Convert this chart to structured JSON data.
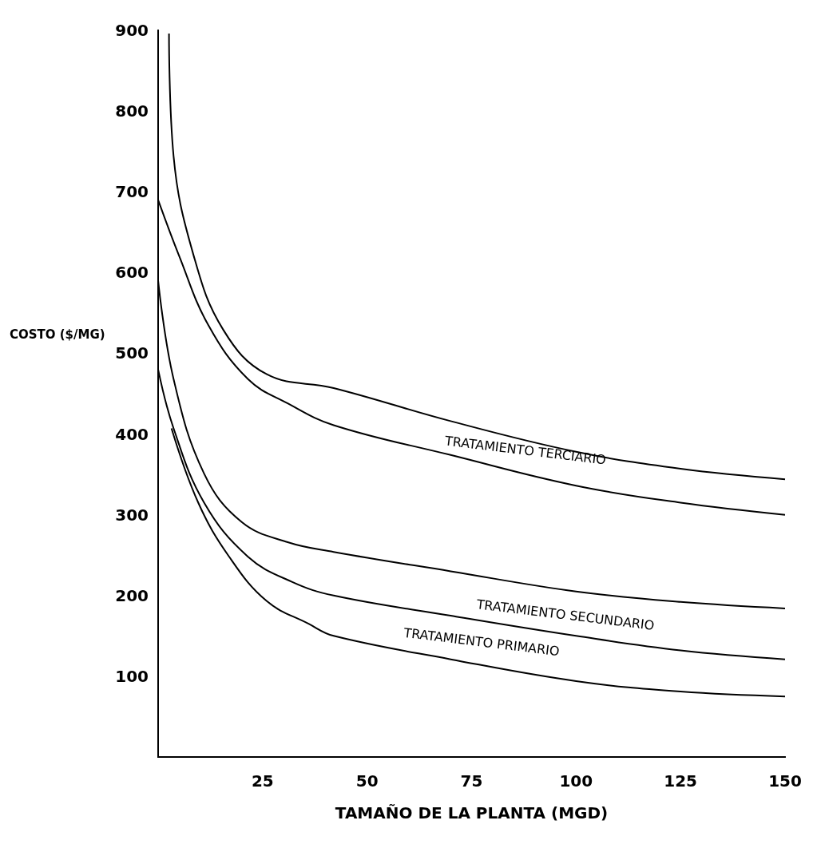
{
  "chart_data": {
    "type": "line",
    "xlabel": "TAMAÑO DE LA PLANTA (MGD)",
    "ylabel": "COSTO ($/MG)",
    "xlim": [
      0,
      150
    ],
    "xticks": [
      25,
      50,
      75,
      100,
      125,
      150
    ],
    "ylim": [
      0,
      900
    ],
    "yticks": [
      100,
      200,
      300,
      400,
      500,
      600,
      700,
      800,
      900
    ],
    "marker": "none",
    "line_style": "solid",
    "series": [
      {
        "color": "#000000",
        "x": [
          2.6,
          3.7,
          8.5,
          15.6,
          26,
          42,
          70,
          100,
          125,
          150
        ],
        "values": [
          896,
          744,
          621,
          529,
          474,
          457,
          416,
          378,
          357,
          344
        ]
      },
      {
        "color": "#000000",
        "x": [
          0,
          5,
          12,
          21.5,
          31,
          42,
          70,
          100,
          125,
          150
        ],
        "values": [
          690,
          621,
          535,
          468,
          438,
          411,
          374,
          336,
          315,
          300
        ]
      },
      {
        "color": "#000000",
        "x": [
          0,
          3.7,
          11,
          20,
          31,
          42,
          70,
          100,
          125,
          150
        ],
        "values": [
          590,
          468,
          351,
          291,
          266,
          254,
          230,
          205,
          192,
          184
        ]
      },
      {
        "color": "#000000",
        "x": [
          0,
          3.7,
          11,
          21.5,
          32,
          42,
          70,
          100,
          125,
          150
        ],
        "values": [
          480,
          407,
          315,
          248,
          217,
          200,
          175,
          150,
          132,
          121
        ]
      },
      {
        "color": "#000000",
        "x": [
          3.2,
          9.6,
          17,
          26,
          36,
          42,
          70,
          100,
          125,
          150
        ],
        "values": [
          407,
          315,
          248,
          193,
          165,
          150,
          121,
          94,
          81,
          75
        ]
      }
    ],
    "annotations": [
      "TRATAMIENTO TERCIARIO",
      "TRATAMIENTO SECUNDARIO",
      "TRATAMIENTO PRIMARIO"
    ]
  }
}
